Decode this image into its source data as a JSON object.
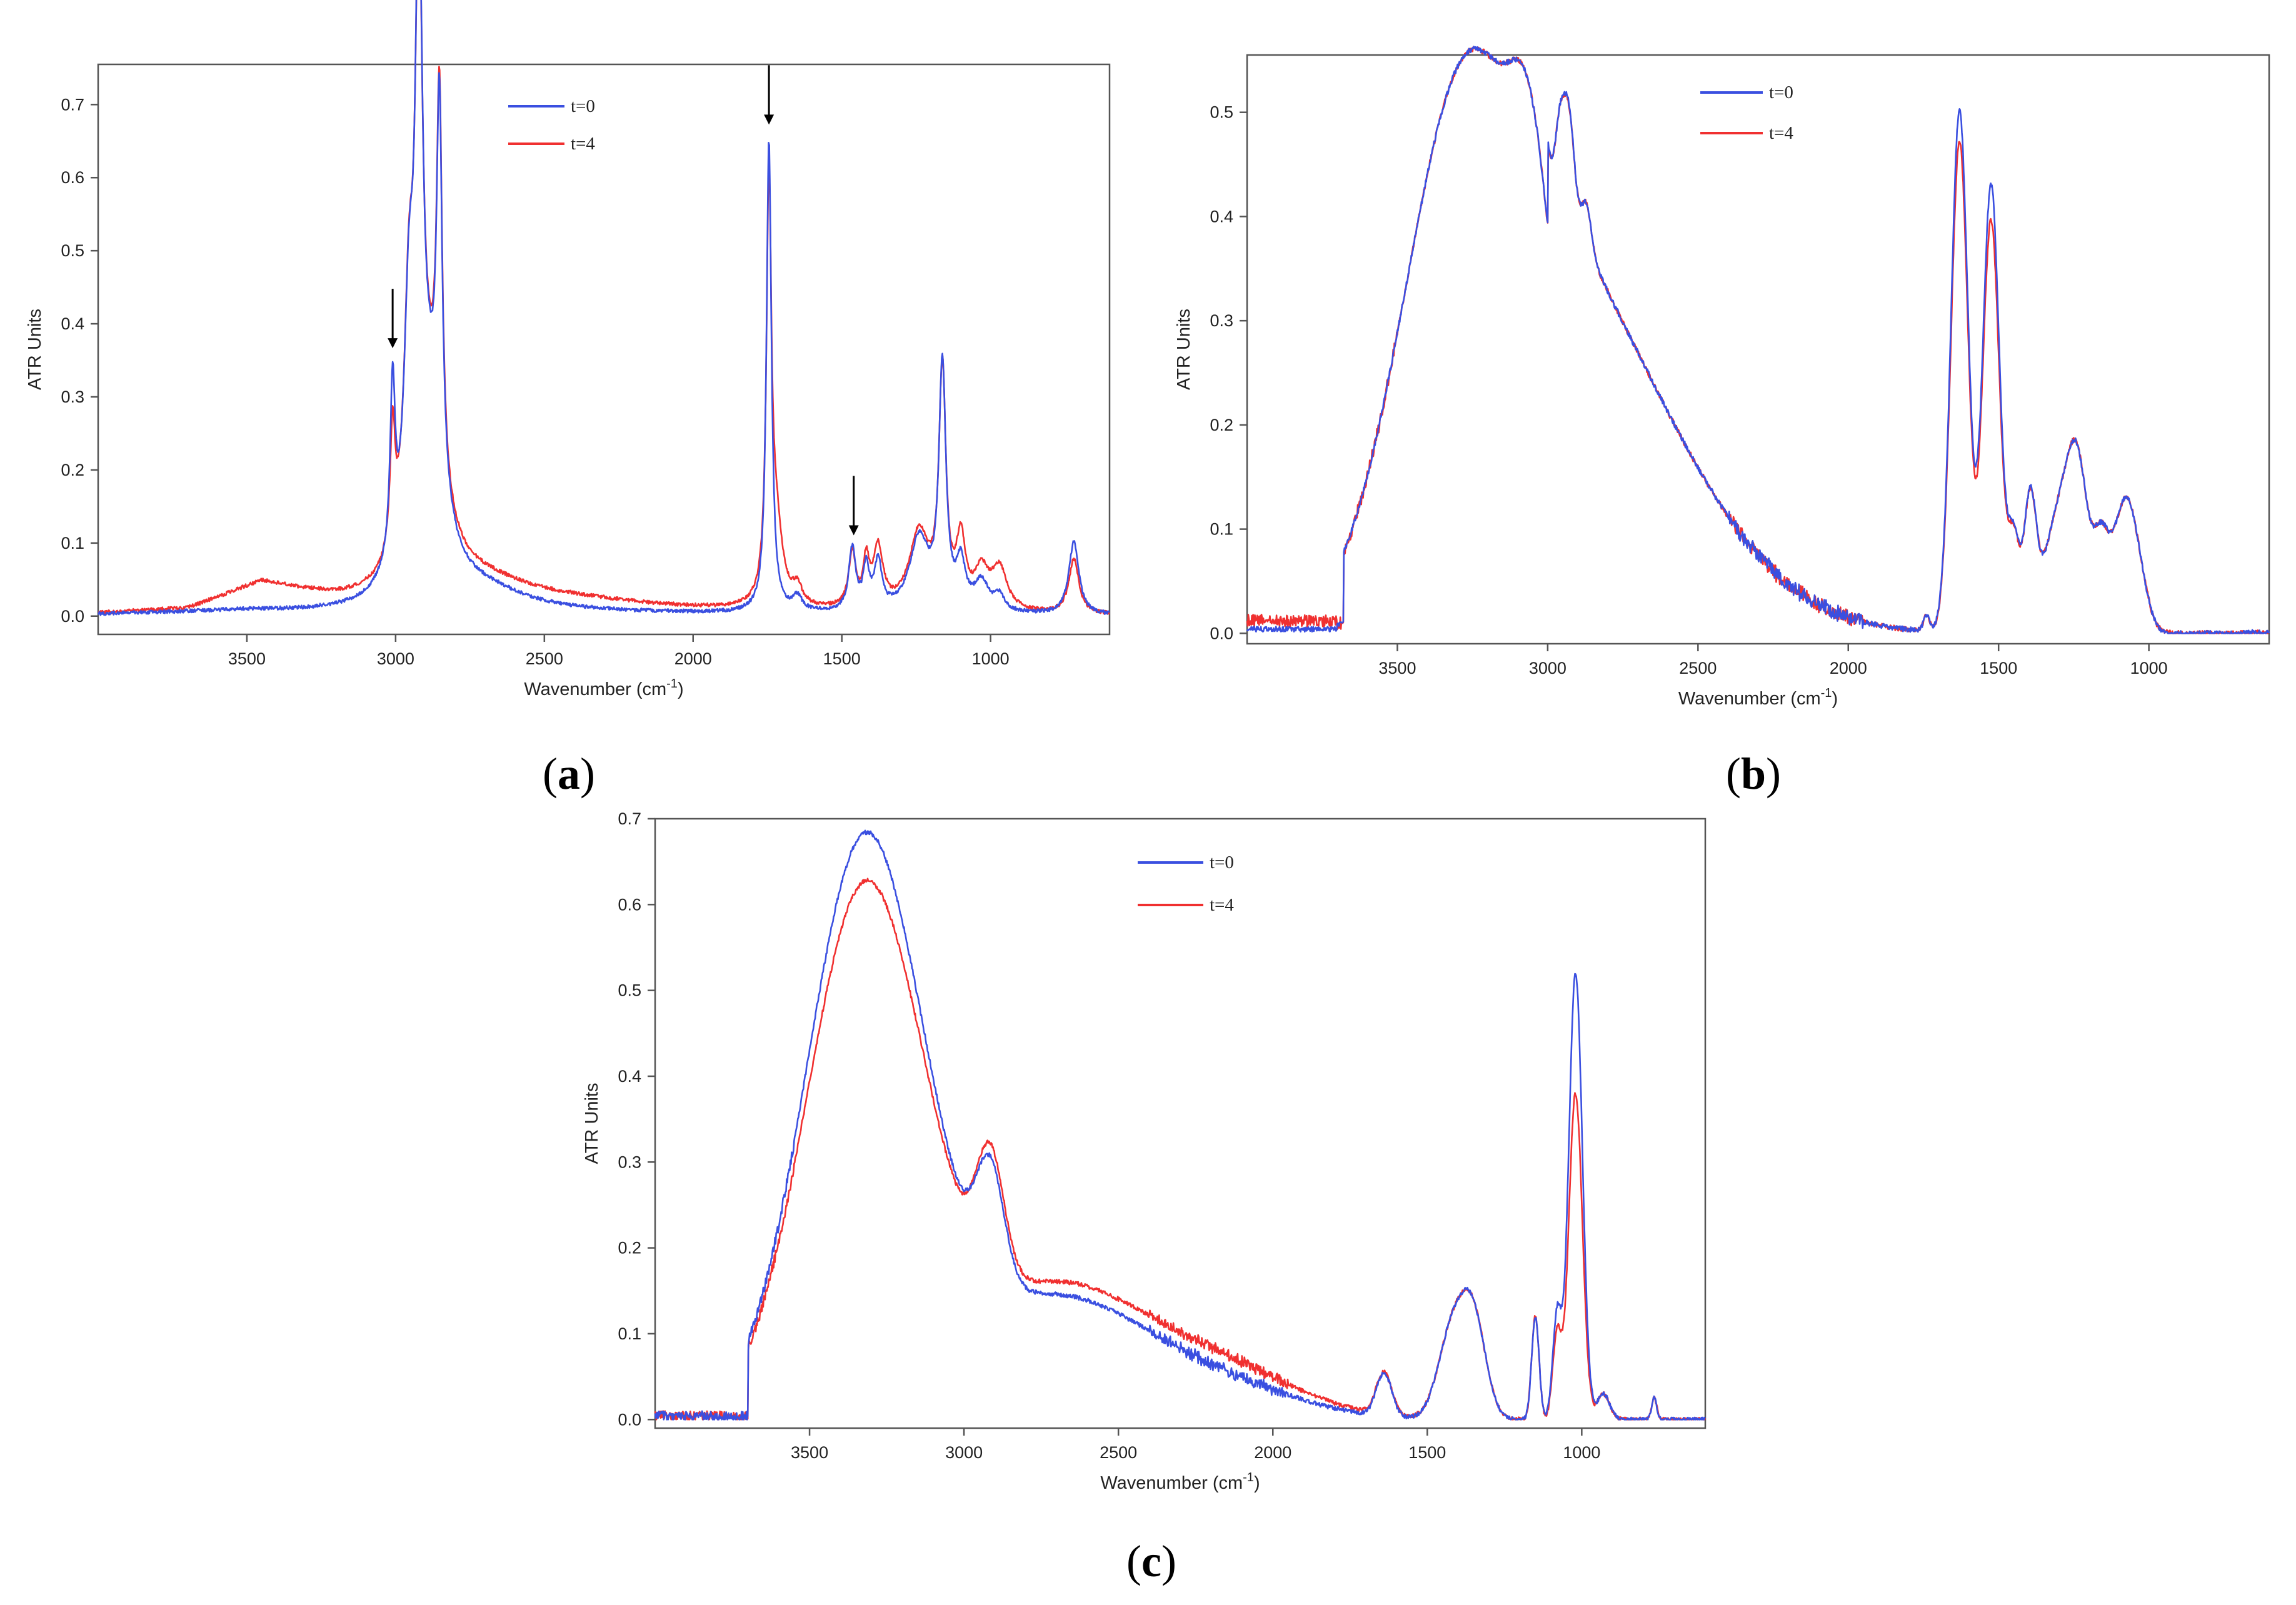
{
  "colors": {
    "t0": "#3a4fe0",
    "t4": "#f03030",
    "frame": "#555555",
    "arrow": "#000000"
  },
  "chart_data": [
    {
      "panel_label": "a",
      "type": "line",
      "xlabel": "Wavenumber (cm",
      "xlabel_sup": "-1",
      "xlabel_close": ")",
      "ylabel": "ATR Units",
      "xlim": [
        4000,
        600
      ],
      "ylim": [
        -0.025,
        0.755
      ],
      "xticks": [
        3500,
        3000,
        2500,
        2000,
        1500,
        1000
      ],
      "yticks": [
        0.0,
        0.1,
        0.2,
        0.3,
        0.4,
        0.5,
        0.6,
        0.7
      ],
      "ytick_labels": [
        "0.0",
        "0.1",
        "0.2",
        "0.3",
        "0.4",
        "0.5",
        "0.6",
        "0.7"
      ],
      "legend": [
        "t=0",
        "t=4"
      ],
      "legend_position": "top-center",
      "arrows_at": [
        3010,
        1745,
        1460
      ],
      "baseline": [
        [
          [
            600,
            0
          ],
          [
            3050,
            0
          ]
        ],
        [
          [
            600,
            0
          ],
          [
            3050,
            0
          ]
        ]
      ],
      "series": [
        {
          "name": "t=0",
          "baseline_points": [
            [
              4000,
              0.002
            ],
            [
              3500,
              0.006
            ],
            [
              3300,
              0.003
            ],
            [
              3100,
              0.001
            ],
            [
              3050,
              0.004
            ],
            [
              600,
              0.0
            ]
          ],
          "peaks": [
            [
              3010,
              0.235,
              10
            ],
            [
              2955,
              0.29,
              20
            ],
            [
              2922,
              0.73,
              14
            ],
            [
              2853,
              0.51,
              11
            ],
            [
              2890,
              0.24,
              60
            ],
            [
              2700,
              0.025,
              180
            ],
            [
              1745,
              0.647,
              10
            ],
            [
              1650,
              0.02,
              20
            ],
            [
              1465,
              0.085,
              14
            ],
            [
              1418,
              0.058,
              12
            ],
            [
              1378,
              0.065,
              15
            ],
            [
              1240,
              0.1,
              40
            ],
            [
              1162,
              0.33,
              14
            ],
            [
              1100,
              0.06,
              18
            ],
            [
              1030,
              0.04,
              30
            ],
            [
              970,
              0.02,
              20
            ],
            [
              720,
              0.1,
              20
            ]
          ]
        },
        {
          "name": "t=4",
          "baseline_points": [
            [
              4000,
              0.003
            ],
            [
              3700,
              0.008
            ],
            [
              3450,
              0.043
            ],
            [
              3200,
              0.018
            ],
            [
              3050,
              0.01
            ],
            [
              600,
              0.0
            ]
          ],
          "peaks": [
            [
              3010,
              0.165,
              10
            ],
            [
              2955,
              0.29,
              20
            ],
            [
              2922,
              0.705,
              14
            ],
            [
              2853,
              0.51,
              11
            ],
            [
              2890,
              0.24,
              60
            ],
            [
              2700,
              0.03,
              200
            ],
            [
              2400,
              0.01,
              300
            ],
            [
              1745,
              0.56,
              10
            ],
            [
              1720,
              0.1,
              25
            ],
            [
              1650,
              0.025,
              20
            ],
            [
              1465,
              0.075,
              14
            ],
            [
              1418,
              0.06,
              12
            ],
            [
              1378,
              0.08,
              20
            ],
            [
              1240,
              0.105,
              40
            ],
            [
              1162,
              0.32,
              14
            ],
            [
              1100,
              0.09,
              18
            ],
            [
              1030,
              0.05,
              30
            ],
            [
              970,
              0.055,
              30
            ],
            [
              720,
              0.075,
              20
            ]
          ]
        }
      ]
    },
    {
      "panel_label": "b",
      "type": "line",
      "xlabel": "Wavenumber (cm",
      "xlabel_sup": "-1",
      "xlabel_close": ")",
      "ylabel": "ATR Units",
      "xlim": [
        4000,
        600
      ],
      "ylim": [
        -0.01,
        0.555
      ],
      "xticks": [
        3500,
        3000,
        2500,
        2000,
        1500,
        1000
      ],
      "yticks": [
        0.0,
        0.1,
        0.2,
        0.3,
        0.4,
        0.5
      ],
      "ytick_labels": [
        "0.0",
        "0.1",
        "0.2",
        "0.3",
        "0.4",
        "0.5"
      ],
      "legend": [
        "t=0",
        "t=4"
      ],
      "legend_position": "top-center",
      "arrows_at": [],
      "series": [
        {
          "name": "t=0",
          "baseline_points": [
            [
              4000,
              0.002
            ],
            [
              3700,
              0.005
            ]
          ],
          "peaks": []
        },
        {
          "name": "t=4",
          "baseline_points": [
            [
              4000,
              0.01
            ],
            [
              3700,
              0.012
            ]
          ],
          "peaks": []
        }
      ]
    },
    {
      "panel_label": "c",
      "type": "line",
      "xlabel": "Wavenumber (cm",
      "xlabel_sup": "-1",
      "xlabel_close": ")",
      "ylabel": "ATR Units",
      "xlim": [
        4000,
        600
      ],
      "ylim": [
        -0.01,
        0.7
      ],
      "xticks": [
        3500,
        3000,
        2500,
        2000,
        1500,
        1000
      ],
      "yticks": [
        0.0,
        0.1,
        0.2,
        0.3,
        0.4,
        0.5,
        0.6,
        0.7
      ],
      "ytick_labels": [
        "0.0",
        "0.1",
        "0.2",
        "0.3",
        "0.4",
        "0.5",
        "0.6",
        "0.7"
      ],
      "legend": [
        "t=0",
        "t=4"
      ],
      "legend_position": "top-center",
      "arrows_at": [],
      "series": [
        {
          "name": "t=0",
          "baseline_points": [],
          "peaks": []
        },
        {
          "name": "t=4",
          "baseline_points": [],
          "peaks": []
        }
      ]
    }
  ],
  "panel_label_text": {
    "a": "a",
    "b": "b",
    "c": "c"
  }
}
